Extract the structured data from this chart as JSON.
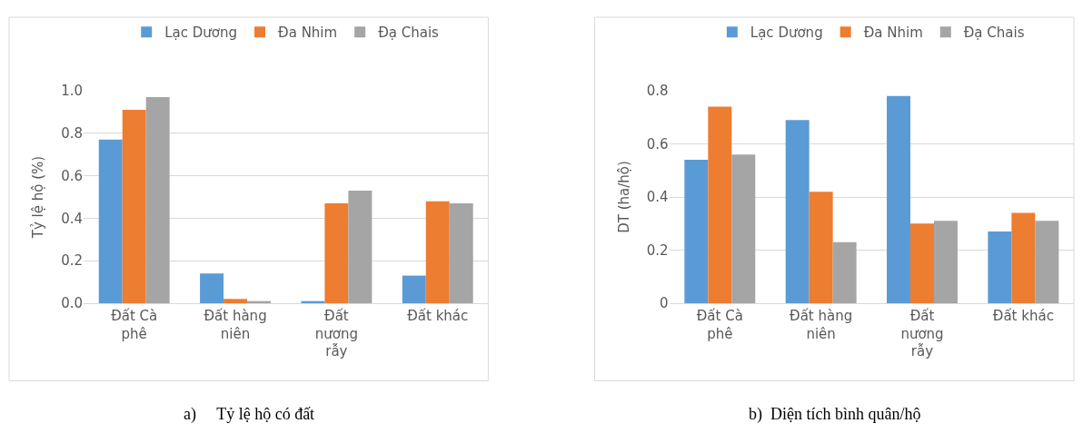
{
  "chart_data": [
    {
      "type": "bar",
      "categories": [
        "Đất Cà phê",
        "Đất hàng niên",
        "Đất nương rẫy",
        "Đất khác"
      ],
      "ylabel": "Tỷ lệ hộ (%)",
      "ylim": [
        0,
        1.0
      ],
      "yticks": [
        {
          "value": 0,
          "label": "0.0"
        },
        0.2,
        0.4,
        0.6,
        0.8,
        {
          "value": 1.0,
          "label": "1.0"
        }
      ],
      "grid": "y",
      "legend": "top",
      "series": [
        {
          "name": "Lạc Dương",
          "color": "#5b9bd5",
          "values": [
            0.77,
            0.14,
            0.01,
            0.13
          ]
        },
        {
          "name": "Đa Nhim",
          "color": "#ed7d31",
          "values": [
            0.91,
            0.02,
            0.47,
            0.48
          ]
        },
        {
          "name": "Đạ Chais",
          "color": "#a5a5a5",
          "values": [
            0.97,
            0.01,
            0.53,
            0.47
          ]
        }
      ],
      "annotations": [
        "a)     Tỷ lệ hộ có đất"
      ]
    },
    {
      "type": "bar",
      "categories": [
        "Đất Cà phê",
        "Đất hàng niên",
        "Đất nương rẫy",
        "Đất khác"
      ],
      "ylabel": "DT (ha/hộ)",
      "ylim": [
        0,
        0.8
      ],
      "yticks": [
        0,
        0.2,
        0.4,
        0.6,
        0.8
      ],
      "grid": "y",
      "legend": "top",
      "series": [
        {
          "name": "Lạc Dương",
          "color": "#5b9bd5",
          "values": [
            0.54,
            0.69,
            0.78,
            0.27
          ]
        },
        {
          "name": "Đa Nhim",
          "color": "#ed7d31",
          "values": [
            0.74,
            0.42,
            0.3,
            0.34
          ]
        },
        {
          "name": "Đạ Chais",
          "color": "#a5a5a5",
          "values": [
            0.56,
            0.23,
            0.31,
            0.31
          ]
        }
      ],
      "annotations": [
        "b)  Diện tích bình quân/hộ"
      ]
    }
  ]
}
